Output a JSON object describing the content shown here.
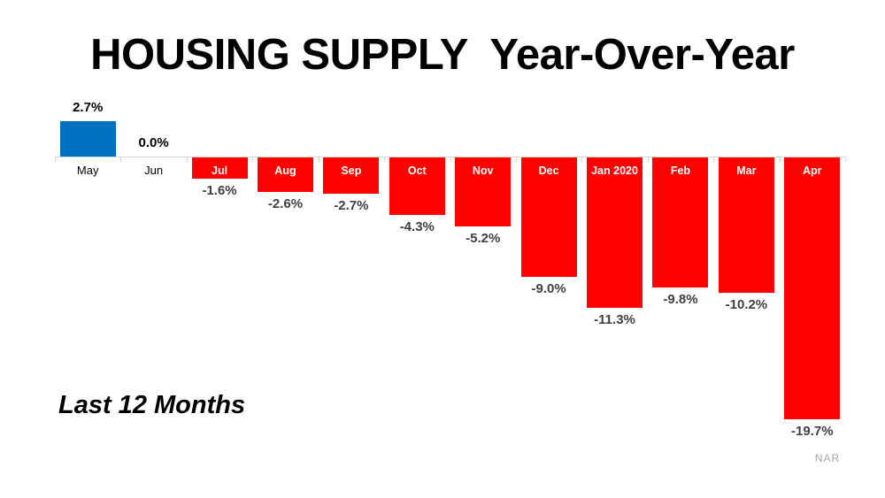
{
  "source": "NAR",
  "colors": {
    "positive_bar": "#0070C0",
    "negative_bar": "#FF0000",
    "axis": "#D6D6D6",
    "positive_value_label": "#000000",
    "negative_value_label": "#404040",
    "month_label_outside": "#000000",
    "month_label_inside": "#FFFFFF",
    "source_text": "#A6A6A6"
  },
  "chart_data": {
    "type": "bar",
    "title": "HOUSING SUPPLY  Year-Over-Year",
    "annotation": "Last 12 Months",
    "categories": [
      "May",
      "Jun",
      "Jul",
      "Aug",
      "Sep",
      "Oct",
      "Nov",
      "Dec",
      "Jan 2020",
      "Feb",
      "Mar",
      "Apr"
    ],
    "values": [
      2.7,
      0.0,
      -1.6,
      -2.6,
      -2.7,
      -4.3,
      -5.2,
      -9.0,
      -11.3,
      -9.8,
      -10.2,
      -19.7
    ],
    "value_labels": [
      "2.7%",
      "0.0%",
      "-1.6%",
      "-2.6%",
      "-2.7%",
      "-4.3%",
      "-5.2%",
      "-9.0%",
      "-11.3%",
      "-9.8%",
      "-10.2%",
      "-19.7%"
    ],
    "unit": "%",
    "xlabel": "",
    "ylabel": "",
    "ylim": [
      -20,
      3
    ],
    "grid": false,
    "legend": false,
    "baseline": 0,
    "month_label_position": "outside-below-axis for values >= 0, inside top of bar for negatives",
    "value_label_position": "outside end of each bar"
  }
}
